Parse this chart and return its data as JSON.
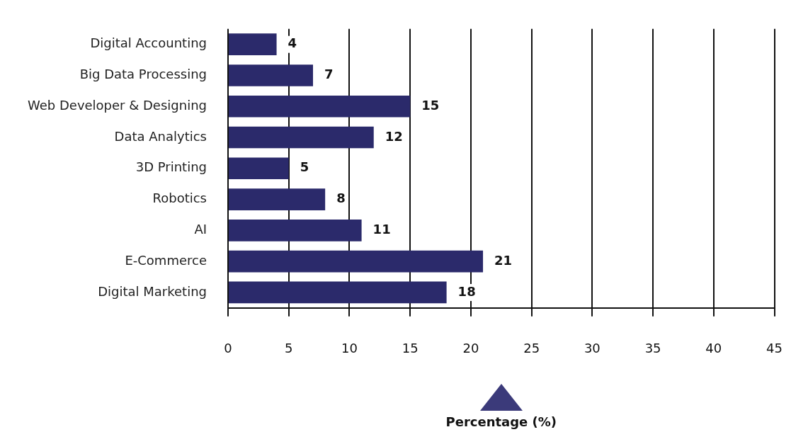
{
  "chart_data": {
    "type": "bar",
    "orientation": "horizontal",
    "xlabel": "Percentage (%)",
    "categories": [
      "Digital Accounting",
      "Big Data Processing",
      "Web Developer & Designing",
      "Data Analytics",
      "3D Printing",
      "Robotics",
      "AI",
      "E-Commerce",
      "Digital Marketing"
    ],
    "values": [
      4,
      7,
      15,
      12,
      5,
      8,
      11,
      21,
      18
    ],
    "color": "#2b2a6b",
    "xlim": [
      0,
      45
    ],
    "xticks": [
      0,
      5,
      10,
      15,
      20,
      25,
      30,
      35,
      40,
      45
    ],
    "grid": "x",
    "data_labels": true,
    "legend": false
  }
}
